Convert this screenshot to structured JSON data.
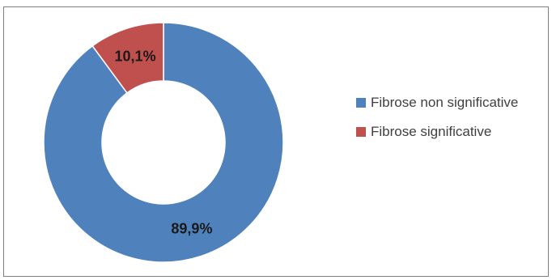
{
  "chart_data": {
    "type": "pie",
    "donut": true,
    "title": "",
    "slices": [
      {
        "label": "Fibrose non significative",
        "value": 89.9,
        "display": "89,9%",
        "color": "#4f81bd"
      },
      {
        "label": "Fibrose significative",
        "value": 10.1,
        "display": "10,1%",
        "color": "#c0504d"
      }
    ],
    "legend_position": "right",
    "legend": [
      "Fibrose non significative",
      "Fibrose significative"
    ]
  }
}
